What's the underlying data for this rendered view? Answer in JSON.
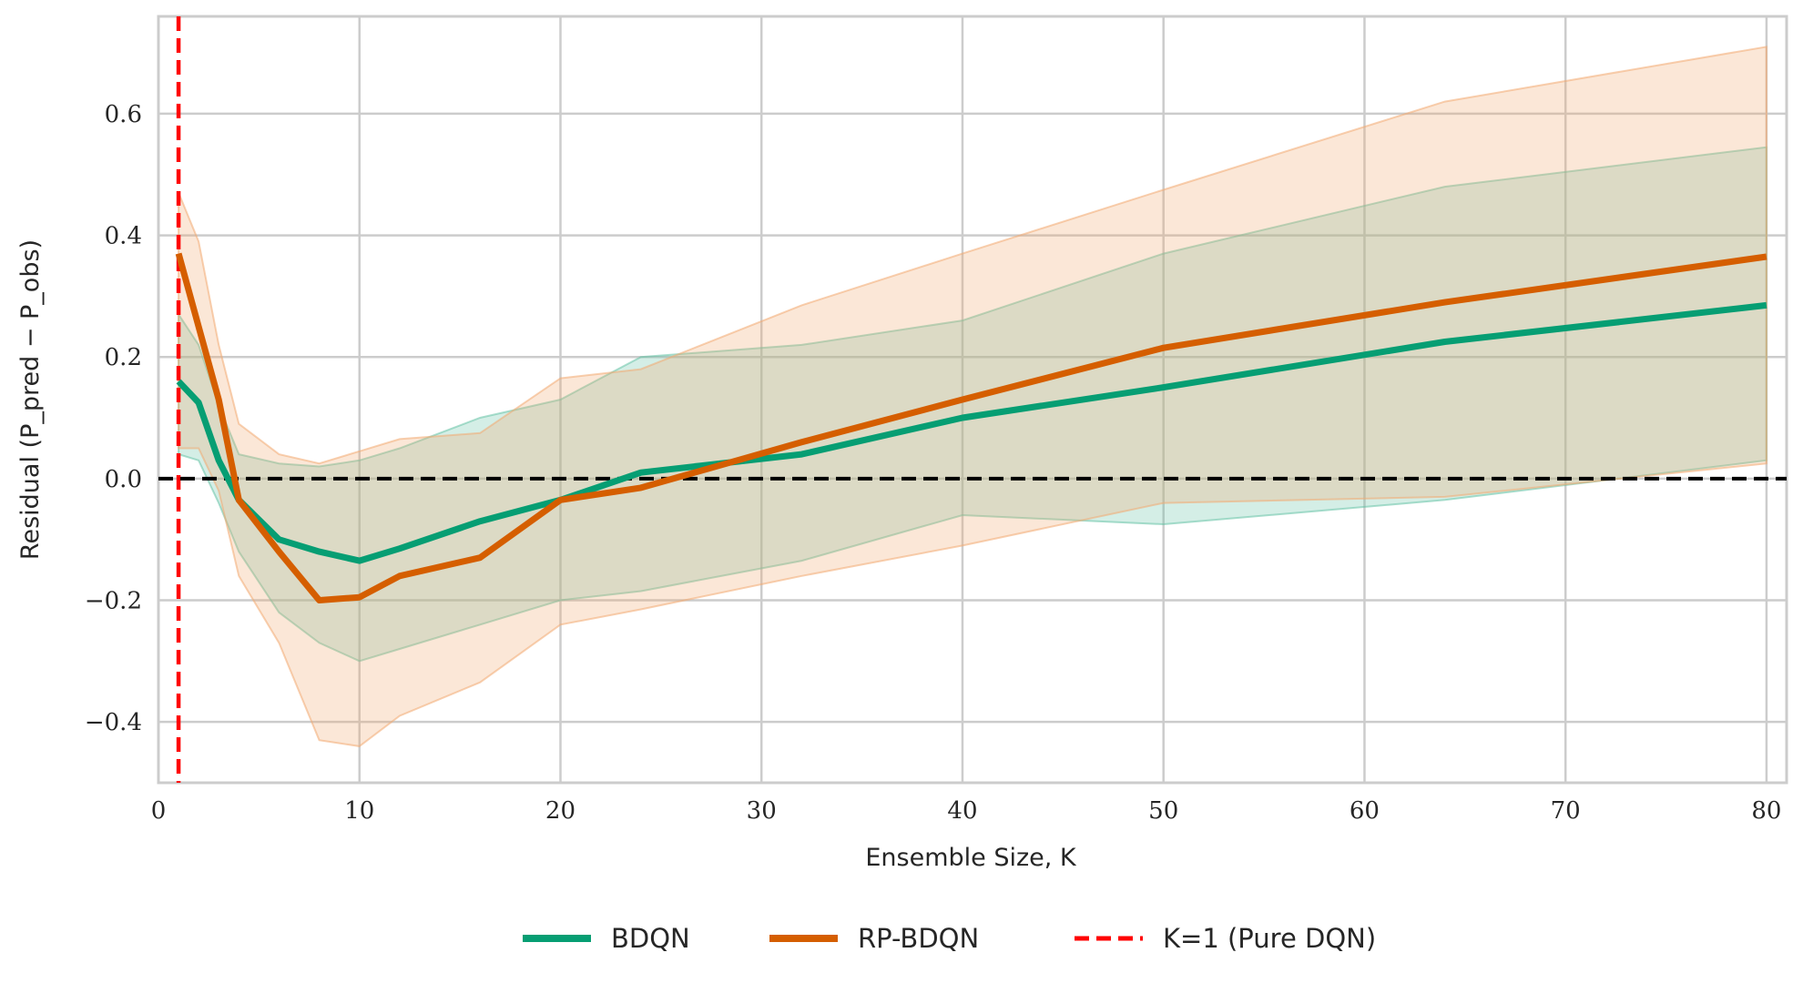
{
  "chart_data": {
    "type": "line",
    "xlabel": "Ensemble Size, K",
    "ylabel": "Residual (P_pred − P_obs)",
    "xlim": [
      0,
      81
    ],
    "ylim": [
      -0.5,
      0.76
    ],
    "x_ticks": [
      0,
      10,
      20,
      30,
      40,
      50,
      60,
      70,
      80
    ],
    "x_tick_labels": [
      "0",
      "10",
      "20",
      "30",
      "40",
      "50",
      "60",
      "70",
      "80"
    ],
    "y_ticks": [
      -0.4,
      -0.2,
      0.0,
      0.2,
      0.4,
      0.6
    ],
    "y_tick_labels": [
      "−0.4",
      "−0.2",
      "0.0",
      "0.2",
      "0.4",
      "0.6"
    ],
    "grid": true,
    "legend_placement": "bottom-center",
    "series": [
      {
        "name": "BDQN",
        "color": "#069e73",
        "band_color": "#66c2a5",
        "x": [
          1,
          2,
          3,
          4,
          6,
          8,
          10,
          12,
          16,
          20,
          24,
          32,
          40,
          50,
          64,
          80
        ],
        "y": [
          0.16,
          0.125,
          0.03,
          -0.035,
          -0.1,
          -0.12,
          -0.135,
          -0.115,
          -0.07,
          -0.035,
          0.01,
          0.04,
          0.1,
          0.15,
          0.225,
          0.285
        ],
        "lower": [
          0.04,
          0.03,
          -0.04,
          -0.12,
          -0.22,
          -0.27,
          -0.3,
          -0.28,
          -0.24,
          -0.2,
          -0.185,
          -0.135,
          -0.06,
          -0.075,
          -0.035,
          0.03
        ],
        "upper": [
          0.27,
          0.22,
          0.12,
          0.04,
          0.025,
          0.02,
          0.03,
          0.05,
          0.1,
          0.13,
          0.2,
          0.22,
          0.26,
          0.37,
          0.48,
          0.545
        ]
      },
      {
        "name": "RP-BDQN",
        "color": "#d55e00",
        "band_color": "#f2a971",
        "x": [
          1,
          2,
          3,
          4,
          6,
          8,
          10,
          12,
          16,
          20,
          24,
          32,
          40,
          50,
          64,
          80
        ],
        "y": [
          0.37,
          0.25,
          0.13,
          -0.035,
          -0.12,
          -0.2,
          -0.195,
          -0.16,
          -0.13,
          -0.035,
          -0.015,
          0.06,
          0.13,
          0.215,
          0.29,
          0.365
        ],
        "lower": [
          0.05,
          0.05,
          -0.02,
          -0.16,
          -0.27,
          -0.43,
          -0.44,
          -0.39,
          -0.335,
          -0.24,
          -0.215,
          -0.16,
          -0.11,
          -0.04,
          -0.03,
          0.025
        ],
        "upper": [
          0.47,
          0.39,
          0.22,
          0.09,
          0.04,
          0.025,
          0.045,
          0.065,
          0.075,
          0.165,
          0.18,
          0.285,
          0.37,
          0.475,
          0.62,
          0.71
        ]
      }
    ],
    "reference_lines": [
      {
        "name": "K=1 (Pure DQN)",
        "orientation": "vertical",
        "value": 1,
        "color": "#ff0000",
        "style": "dashed"
      },
      {
        "name": "",
        "orientation": "horizontal",
        "value": 0,
        "color": "#000000",
        "style": "dashed"
      }
    ],
    "legend": [
      {
        "label": "BDQN",
        "color": "#069e73",
        "style": "solid"
      },
      {
        "label": "RP-BDQN",
        "color": "#d55e00",
        "style": "solid"
      },
      {
        "label": "K=1 (Pure DQN)",
        "color": "#ff0000",
        "style": "dashed"
      }
    ]
  }
}
